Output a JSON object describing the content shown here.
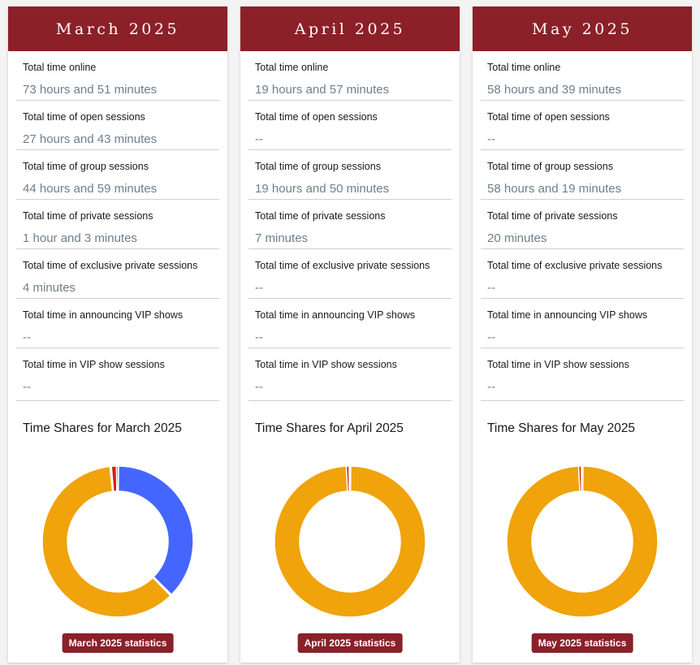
{
  "colors": {
    "header_bg": "#8b2028",
    "group": "#f0a30a",
    "open": "#4466ff",
    "private": "#d31f0f",
    "exclusive": "#c0392b"
  },
  "months": [
    {
      "title": "March 2025",
      "rows": [
        {
          "label": "Total time online",
          "value": "73 hours and 51 minutes"
        },
        {
          "label": "Total time of open sessions",
          "value": "27 hours and 43 minutes"
        },
        {
          "label": "Total time of group sessions",
          "value": "44 hours and 59 minutes"
        },
        {
          "label": "Total time of private sessions",
          "value": "1 hour and 3 minutes"
        },
        {
          "label": "Total time of exclusive private sessions",
          "value": "4 minutes"
        },
        {
          "label": "Total time in announcing VIP shows",
          "value": "--"
        },
        {
          "label": "Total time in VIP show sessions",
          "value": "--"
        }
      ],
      "chart_title": "Time Shares for March 2025",
      "button_label": "March 2025 statistics",
      "shares_minutes": {
        "open": 1663,
        "group": 2699,
        "private": 63,
        "exclusive": 4
      }
    },
    {
      "title": "April 2025",
      "rows": [
        {
          "label": "Total time online",
          "value": "19 hours and 57 minutes"
        },
        {
          "label": "Total time of open sessions",
          "value": "--"
        },
        {
          "label": "Total time of group sessions",
          "value": "19 hours and 50 minutes"
        },
        {
          "label": "Total time of private sessions",
          "value": "7 minutes"
        },
        {
          "label": "Total time of exclusive private sessions",
          "value": "--"
        },
        {
          "label": "Total time in announcing VIP shows",
          "value": "--"
        },
        {
          "label": "Total time in VIP show sessions",
          "value": "--"
        }
      ],
      "chart_title": "Time Shares for April 2025",
      "button_label": "April 2025 statistics",
      "shares_minutes": {
        "open": 0,
        "group": 1190,
        "private": 7,
        "exclusive": 0
      }
    },
    {
      "title": "May 2025",
      "rows": [
        {
          "label": "Total time online",
          "value": "58 hours and 39 minutes"
        },
        {
          "label": "Total time of open sessions",
          "value": "--"
        },
        {
          "label": "Total time of group sessions",
          "value": "58 hours and 19 minutes"
        },
        {
          "label": "Total time of private sessions",
          "value": "20 minutes"
        },
        {
          "label": "Total time of exclusive private sessions",
          "value": "--"
        },
        {
          "label": "Total time in announcing VIP shows",
          "value": "--"
        },
        {
          "label": "Total time in VIP show sessions",
          "value": "--"
        }
      ],
      "chart_title": "Time Shares for May 2025",
      "button_label": "May 2025 statistics",
      "shares_minutes": {
        "open": 0,
        "group": 3499,
        "private": 20,
        "exclusive": 0
      }
    }
  ]
}
